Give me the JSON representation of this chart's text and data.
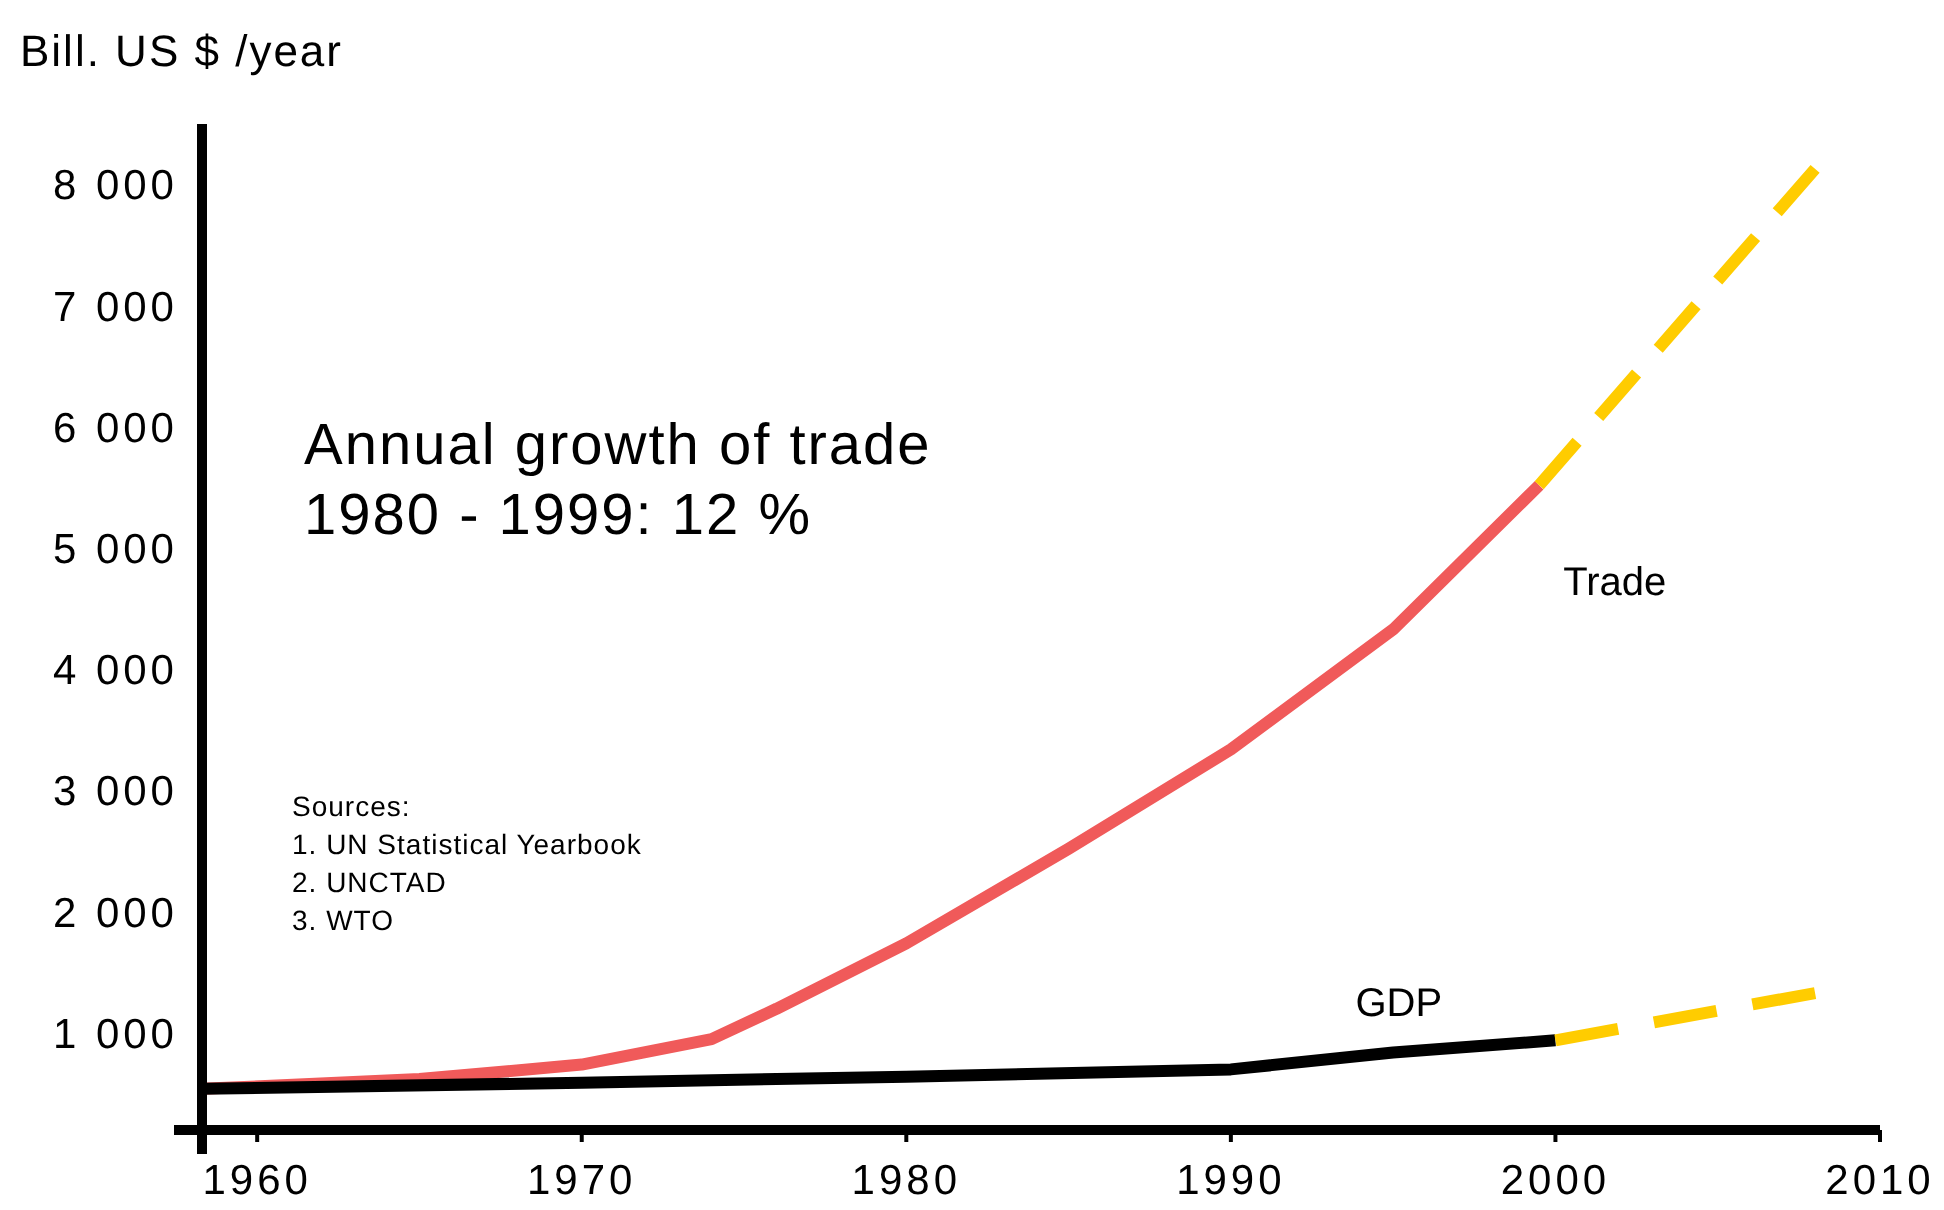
{
  "chart_data": {
    "type": "line",
    "ylabel": "Bill. US $ /year",
    "xlim": [
      1958.3,
      2010
    ],
    "xticks": [
      1960,
      1970,
      1980,
      1990,
      2000,
      2010
    ],
    "ylim": [
      200,
      8500
    ],
    "yticks": [
      {
        "value": 1000,
        "label": "1 000"
      },
      {
        "value": 2000,
        "label": "2 000"
      },
      {
        "value": 3000,
        "label": "3 000"
      },
      {
        "value": 4000,
        "label": "4 000"
      },
      {
        "value": 5000,
        "label": "5 000"
      },
      {
        "value": 6000,
        "label": "6 000"
      },
      {
        "value": 7000,
        "label": "7 000"
      },
      {
        "value": 8000,
        "label": "8 000"
      }
    ],
    "grid": false,
    "series": [
      {
        "name": "Trade",
        "color": "#f05a5a",
        "line_style": "solid",
        "x": [
          1958.3,
          1965,
          1970,
          1974,
          1976,
          1980,
          1985,
          1990,
          1995,
          1999.5
        ],
        "values": [
          540,
          620,
          740,
          950,
          1200,
          1740,
          2520,
          3340,
          4330,
          5520
        ]
      },
      {
        "color": "#ffcc00",
        "line_style": "dashed",
        "x": [
          1999.5,
          2008
        ],
        "values": [
          5520,
          8130
        ]
      },
      {
        "name": "GDP",
        "color": "#000000",
        "line_style": "solid",
        "x": [
          1958.3,
          1970,
          1980,
          1990,
          1995,
          2000
        ],
        "values": [
          540,
          590,
          640,
          700,
          840,
          940
        ]
      },
      {
        "color": "#ffcc00",
        "line_style": "dashed",
        "x": [
          2000,
          2008
        ],
        "values": [
          940,
          1330
        ]
      }
    ],
    "annotations": [
      "Annual growth of trade\n1980 - 1999: 12 %",
      "Sources:\n1. UN Statistical Yearbook\n2. UNCTAD\n3. WTO"
    ]
  }
}
